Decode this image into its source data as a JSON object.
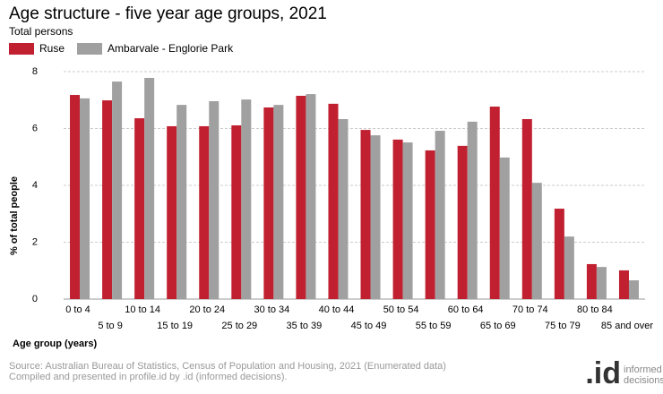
{
  "chart_data": {
    "type": "bar",
    "title": "Age structure - five year age groups, 2021",
    "subtitle": "Total persons",
    "xlabel": "Age group (years)",
    "ylabel": "% of total people",
    "categories": [
      "0 to 4",
      "5 to 9",
      "10 to 14",
      "15 to 19",
      "20 to 24",
      "25 to 29",
      "30 to 34",
      "35 to 39",
      "40 to 44",
      "45 to 49",
      "50 to 54",
      "55 to 59",
      "60 to 64",
      "65 to 69",
      "70 to 74",
      "75 to 79",
      "80 to 84",
      "85 and over"
    ],
    "series": [
      {
        "name": "Ruse",
        "color": "#c0202f",
        "values": [
          7.18,
          6.99,
          6.36,
          6.08,
          6.08,
          6.11,
          6.74,
          7.15,
          6.87,
          5.95,
          5.61,
          5.23,
          5.39,
          6.77,
          6.33,
          3.18,
          1.23,
          1.01
        ]
      },
      {
        "name": "Ambarvale - Englorie Park",
        "color": "#a0a0a0",
        "values": [
          7.06,
          7.65,
          7.78,
          6.83,
          6.96,
          7.02,
          6.83,
          7.21,
          6.33,
          5.76,
          5.51,
          5.92,
          6.24,
          4.98,
          4.09,
          2.2,
          1.13,
          0.66
        ]
      }
    ],
    "ylim": [
      0,
      8
    ],
    "yticks": [
      0,
      2,
      4,
      6,
      8
    ],
    "grid": true,
    "source": [
      "Source: Australian Bureau of Statistics, Census of Population and Housing, 2021 (Enumerated data)",
      "Compiled and presented in profile.id by .id (informed decisions)."
    ],
    "logo": {
      "mark": ".id",
      "line1": "informed",
      "line2": "decisions"
    }
  }
}
